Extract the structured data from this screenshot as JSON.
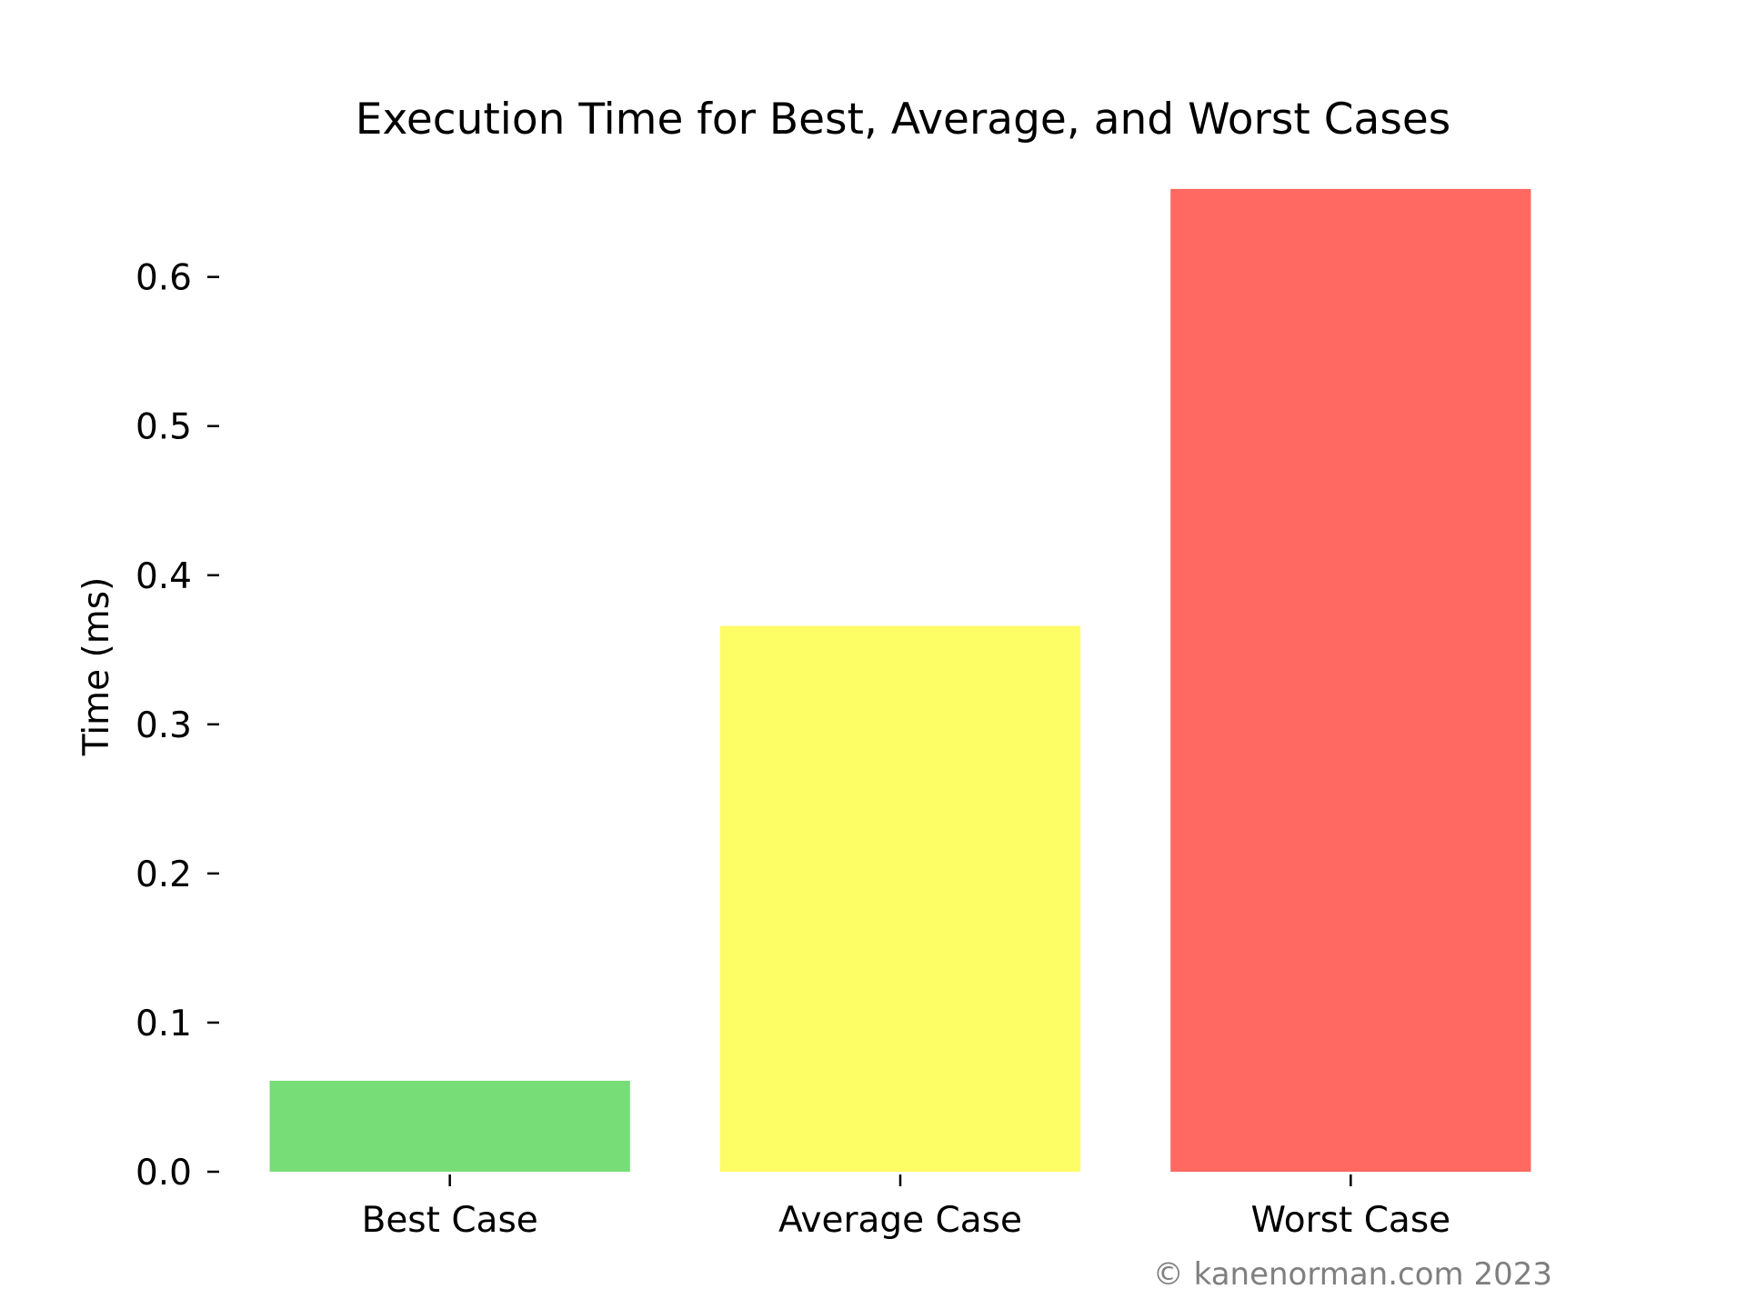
{
  "chart_data": {
    "type": "bar",
    "title": "Execution Time for Best, Average, and Worst Cases",
    "xlabel": "",
    "ylabel": "Time (ms)",
    "categories": [
      "Best Case",
      "Average Case",
      "Worst Case"
    ],
    "values": [
      0.061,
      0.366,
      0.659
    ],
    "colors": [
      "#77dd77",
      "#fdfd66",
      "#ff6961"
    ],
    "ylim": [
      0,
      0.69
    ],
    "yticks": [
      0.0,
      0.1,
      0.2,
      0.3,
      0.4,
      0.5,
      0.6
    ],
    "ytick_labels": [
      "0.0",
      "0.1",
      "0.2",
      "0.3",
      "0.4",
      "0.5",
      "0.6"
    ],
    "grid": false,
    "legend": "none"
  },
  "footer": {
    "copyright": "© kanenorman.com 2023"
  }
}
